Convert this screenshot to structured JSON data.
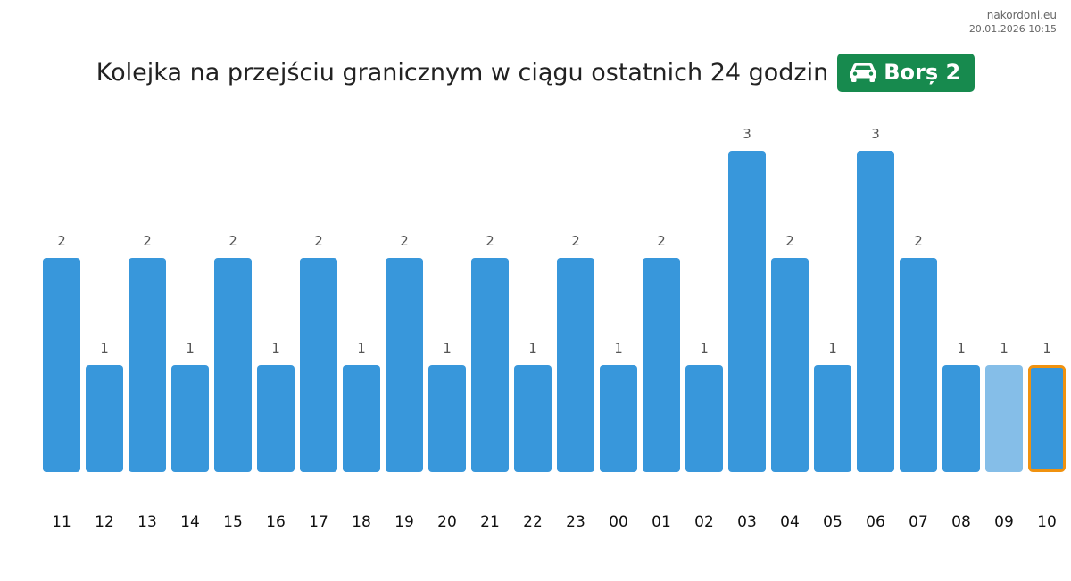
{
  "source": {
    "site": "nakordoni.eu",
    "timestamp": "20.01.2026 10:15"
  },
  "title": "Kolejka na przejściu granicznym w ciągu ostatnich 24 godzin",
  "badge": {
    "label": "Borș 2",
    "icon": "car-icon",
    "background": "#178a4e",
    "color": "#ffffff"
  },
  "colors": {
    "bar": "#3897db",
    "bar_light": "#85bee8",
    "highlight_border": "#f0920f"
  },
  "chart_data": {
    "type": "bar",
    "title": "Kolejka na przejściu granicznym w ciągu ostatnich 24 godzin",
    "xlabel": "",
    "ylabel": "",
    "categories": [
      "11",
      "12",
      "13",
      "14",
      "15",
      "16",
      "17",
      "18",
      "19",
      "20",
      "21",
      "22",
      "23",
      "00",
      "01",
      "02",
      "03",
      "04",
      "05",
      "06",
      "07",
      "08",
      "09",
      "10"
    ],
    "values": [
      2,
      1,
      2,
      1,
      2,
      1,
      2,
      1,
      2,
      1,
      2,
      1,
      2,
      1,
      2,
      1,
      3,
      2,
      1,
      3,
      2,
      1,
      1,
      1
    ],
    "ylim": [
      0,
      3
    ],
    "grid": false,
    "legend": "none",
    "light_bar_category": "09",
    "highlighted_category": "10"
  }
}
